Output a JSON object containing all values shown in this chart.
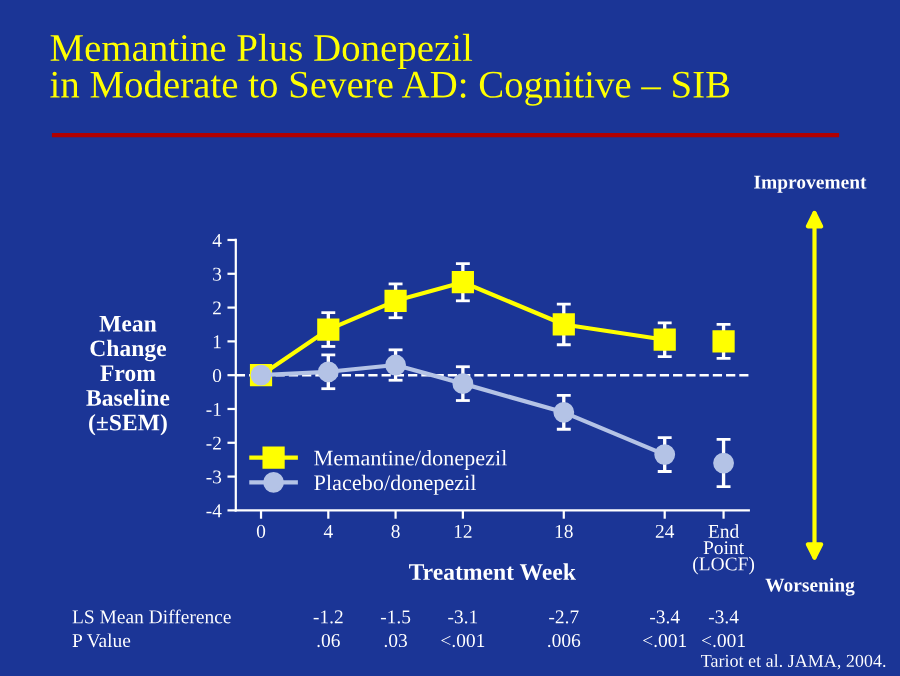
{
  "chart_data": {
    "type": "line",
    "title": "Memantine Plus Donepezil\nin Moderate to Severe AD: Cognitive – SIB",
    "xlabel": "Treatment Week",
    "ylabel": "Mean\nChange\nFrom\nBaseline\n(±SEM)",
    "xlim": [
      -1.5,
      29
    ],
    "xticks": [
      0,
      4,
      8,
      12,
      18,
      24,
      {
        "value": 27.5,
        "label": "End\nPoint\n(LOCF)"
      }
    ],
    "ylim": [
      -4,
      4
    ],
    "yticks": [
      -4,
      -3,
      -2,
      -1,
      0,
      1,
      2,
      3,
      4
    ],
    "series": [
      {
        "name": "Memantine/donepezil",
        "color": "#ffff00",
        "marker": "square",
        "x": [
          0,
          4,
          8,
          12,
          18,
          24
        ],
        "values": [
          0,
          1.35,
          2.2,
          2.75,
          1.5,
          1.05
        ],
        "errors": [
          null,
          0.5,
          0.5,
          0.55,
          0.6,
          0.5
        ]
      },
      {
        "name": "Placebo/donepezil",
        "color": "#b4c3e6",
        "marker": "circle",
        "x": [
          0,
          4,
          8,
          12,
          18,
          24
        ],
        "values": [
          0,
          0.1,
          0.3,
          -0.25,
          -1.1,
          -2.35
        ],
        "errors": [
          null,
          0.5,
          0.45,
          0.5,
          0.5,
          0.5
        ]
      },
      {
        "type": "scatter",
        "color": "#ffff00",
        "marker": "square",
        "x": [
          27.5
        ],
        "values": [
          1.0
        ],
        "errors": [
          0.5
        ]
      },
      {
        "type": "scatter",
        "color": "#b4c3e6",
        "marker": "circle",
        "x": [
          27.5
        ],
        "values": [
          -2.6
        ],
        "errors": [
          0.7
        ]
      }
    ],
    "ref_lines": [
      {
        "axis": "y",
        "value": 0,
        "color": "#ffffff",
        "line_style": "dashed"
      }
    ],
    "legend": "bottom left",
    "grid": false,
    "annotations": [
      "LS Mean Difference",
      "-1.2",
      "-1.5",
      "-3.1",
      "-2.7",
      "-3.4",
      "-3.4",
      "P Value",
      ".06",
      ".03",
      "<.001",
      ".006",
      "<.001",
      "<.001",
      "Tariot et al. JAMA, 2004.",
      "Improvement",
      "Worsening"
    ]
  }
}
